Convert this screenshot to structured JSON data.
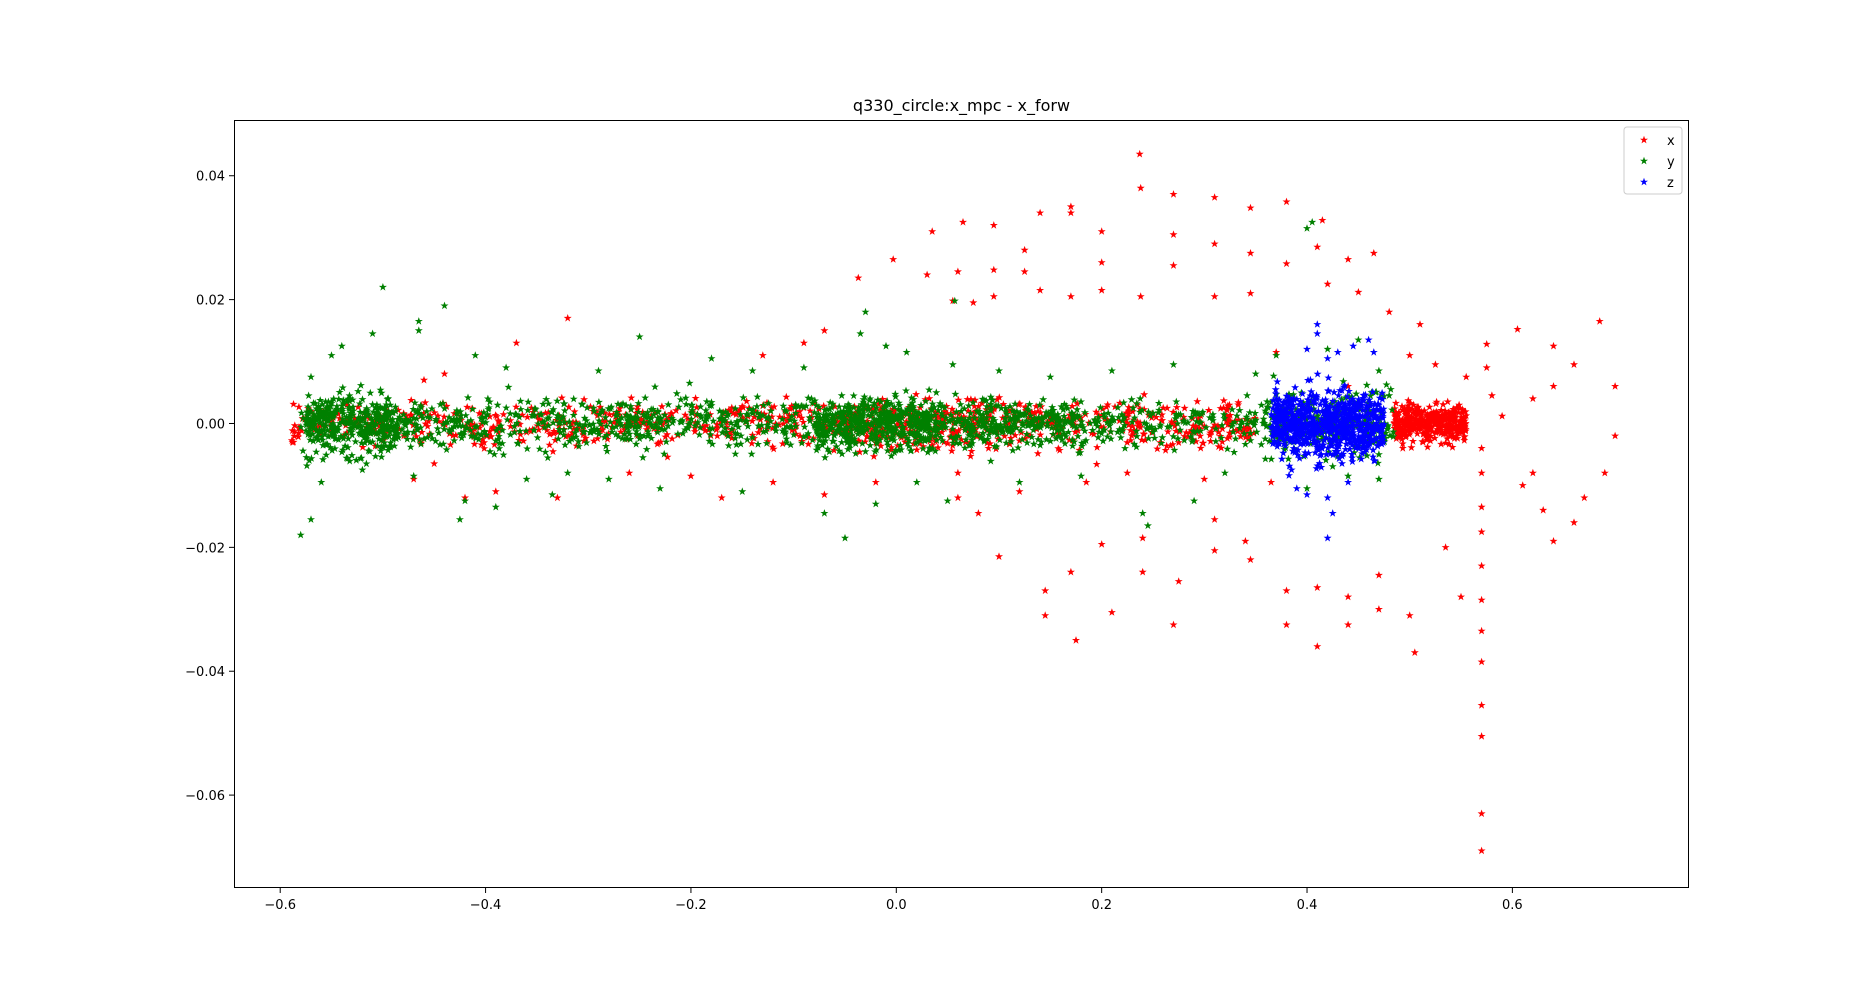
{
  "chart_data": {
    "type": "scatter",
    "title": "q330_circle:x_mpc - x_forw",
    "xlabel": "",
    "ylabel": "",
    "xlim": [
      -0.645,
      0.772
    ],
    "ylim": [
      -0.075,
      0.049
    ],
    "x_ticks": [
      -0.6,
      -0.4,
      -0.2,
      0.0,
      0.2,
      0.4,
      0.6
    ],
    "x_tick_labels": [
      "−0.6",
      "−0.4",
      "−0.2",
      "0.0",
      "0.2",
      "0.4",
      "0.6"
    ],
    "y_ticks": [
      0.04,
      0.02,
      0.0,
      -0.02,
      -0.04,
      -0.06
    ],
    "y_tick_labels": [
      "0.04",
      "0.02",
      "0.00",
      "−0.02",
      "−0.04",
      "−0.06"
    ],
    "grid": false,
    "legend_position": "top-right",
    "marker": "star",
    "series": [
      {
        "name": "x",
        "color": "#ff0000",
        "points": [
          [
            0.237,
            0.0435
          ],
          [
            0.238,
            0.038
          ],
          [
            0.27,
            0.037
          ],
          [
            0.31,
            0.0365
          ],
          [
            0.345,
            0.0348
          ],
          [
            0.38,
            0.0358
          ],
          [
            0.415,
            0.0328
          ],
          [
            0.17,
            0.035
          ],
          [
            0.17,
            0.034
          ],
          [
            0.14,
            0.034
          ],
          [
            0.095,
            0.032
          ],
          [
            0.065,
            0.0325
          ],
          [
            0.035,
            0.031
          ],
          [
            -0.003,
            0.0265
          ],
          [
            -0.037,
            0.0235
          ],
          [
            0.27,
            0.0305
          ],
          [
            0.31,
            0.029
          ],
          [
            0.345,
            0.0275
          ],
          [
            0.38,
            0.0258
          ],
          [
            0.41,
            0.0285
          ],
          [
            0.44,
            0.0265
          ],
          [
            0.465,
            0.0275
          ],
          [
            0.2,
            0.031
          ],
          [
            0.2,
            0.026
          ],
          [
            0.125,
            0.028
          ],
          [
            0.125,
            0.0245
          ],
          [
            0.095,
            0.0248
          ],
          [
            0.06,
            0.0245
          ],
          [
            0.03,
            0.024
          ],
          [
            0.27,
            0.0255
          ],
          [
            0.238,
            0.0205
          ],
          [
            0.2,
            0.0215
          ],
          [
            0.17,
            0.0205
          ],
          [
            0.14,
            0.0215
          ],
          [
            0.095,
            0.0205
          ],
          [
            0.075,
            0.0195
          ],
          [
            0.055,
            0.0198
          ],
          [
            0.31,
            0.0205
          ],
          [
            0.345,
            0.021
          ],
          [
            0.42,
            0.0225
          ],
          [
            0.45,
            0.0212
          ],
          [
            0.48,
            0.018
          ],
          [
            0.51,
            0.016
          ],
          [
            0.575,
            0.0128
          ],
          [
            0.605,
            0.0152
          ],
          [
            0.64,
            0.0125
          ],
          [
            0.685,
            0.0165
          ],
          [
            0.7,
            0.006
          ],
          [
            0.7,
            -0.002
          ],
          [
            0.69,
            -0.008
          ],
          [
            0.67,
            -0.012
          ],
          [
            0.66,
            -0.016
          ],
          [
            0.64,
            -0.019
          ],
          [
            0.63,
            -0.014
          ],
          [
            0.62,
            -0.008
          ],
          [
            0.61,
            -0.01
          ],
          [
            0.59,
            0.0012
          ],
          [
            0.58,
            0.0045
          ],
          [
            0.62,
            0.004
          ],
          [
            0.66,
            0.0095
          ],
          [
            0.64,
            0.006
          ],
          [
            0.57,
            -0.004
          ],
          [
            0.57,
            -0.008
          ],
          [
            0.57,
            -0.0135
          ],
          [
            0.57,
            -0.0175
          ],
          [
            0.57,
            -0.023
          ],
          [
            0.57,
            -0.0285
          ],
          [
            0.57,
            -0.0335
          ],
          [
            0.57,
            -0.0385
          ],
          [
            0.57,
            -0.0455
          ],
          [
            0.57,
            -0.0505
          ],
          [
            0.57,
            -0.063
          ],
          [
            0.57,
            -0.069
          ],
          [
            0.55,
            -0.028
          ],
          [
            0.535,
            -0.02
          ],
          [
            0.5,
            -0.031
          ],
          [
            0.505,
            -0.037
          ],
          [
            0.47,
            -0.03
          ],
          [
            0.47,
            -0.0245
          ],
          [
            0.44,
            -0.028
          ],
          [
            0.44,
            -0.0325
          ],
          [
            0.41,
            -0.036
          ],
          [
            0.41,
            -0.0265
          ],
          [
            0.38,
            -0.0325
          ],
          [
            0.38,
            -0.027
          ],
          [
            0.345,
            -0.022
          ],
          [
            0.31,
            -0.0205
          ],
          [
            0.27,
            -0.0325
          ],
          [
            0.275,
            -0.0255
          ],
          [
            0.24,
            -0.024
          ],
          [
            0.21,
            -0.0305
          ],
          [
            0.175,
            -0.035
          ],
          [
            0.17,
            -0.024
          ],
          [
            0.145,
            -0.031
          ],
          [
            0.145,
            -0.027
          ],
          [
            0.1,
            -0.0215
          ],
          [
            0.2,
            -0.0195
          ],
          [
            0.24,
            -0.0185
          ],
          [
            0.31,
            -0.0155
          ],
          [
            0.34,
            -0.019
          ],
          [
            0.08,
            -0.0145
          ],
          [
            0.06,
            -0.012
          ],
          [
            -0.09,
            0.013
          ],
          [
            -0.07,
            0.015
          ],
          [
            -0.13,
            0.011
          ],
          [
            -0.32,
            0.017
          ],
          [
            -0.37,
            0.013
          ],
          [
            -0.44,
            0.008
          ],
          [
            -0.46,
            0.007
          ],
          [
            -0.48,
            0.0015
          ],
          [
            -0.47,
            -0.009
          ],
          [
            -0.45,
            -0.0065
          ],
          [
            -0.42,
            -0.012
          ],
          [
            -0.39,
            -0.011
          ],
          [
            -0.33,
            -0.012
          ],
          [
            -0.26,
            -0.008
          ],
          [
            -0.2,
            -0.0085
          ],
          [
            -0.17,
            -0.012
          ],
          [
            -0.12,
            -0.0095
          ],
          [
            -0.07,
            -0.0115
          ],
          [
            -0.02,
            -0.0095
          ],
          [
            0.06,
            -0.008
          ],
          [
            0.12,
            -0.011
          ],
          [
            0.185,
            -0.0095
          ],
          [
            0.225,
            -0.008
          ],
          [
            0.3,
            -0.009
          ],
          [
            0.365,
            -0.0095
          ],
          [
            0.37,
            0.0115
          ],
          [
            0.44,
            0.006
          ],
          [
            0.5,
            0.011
          ],
          [
            0.525,
            0.0095
          ],
          [
            0.555,
            0.0075
          ],
          [
            0.575,
            0.009
          ]
        ]
      },
      {
        "name": "y",
        "color": "#008000",
        "points": [
          [
            -0.5,
            0.022
          ],
          [
            -0.465,
            0.0165
          ],
          [
            -0.44,
            0.019
          ],
          [
            -0.465,
            0.015
          ],
          [
            -0.51,
            0.0145
          ],
          [
            -0.54,
            0.0125
          ],
          [
            -0.55,
            0.011
          ],
          [
            -0.57,
            0.0075
          ],
          [
            -0.58,
            -0.018
          ],
          [
            -0.57,
            -0.0155
          ],
          [
            -0.56,
            -0.0095
          ],
          [
            -0.52,
            -0.0075
          ],
          [
            -0.425,
            -0.0155
          ],
          [
            -0.42,
            -0.0125
          ],
          [
            -0.39,
            -0.0135
          ],
          [
            -0.36,
            -0.009
          ],
          [
            -0.335,
            -0.0115
          ],
          [
            -0.28,
            -0.009
          ],
          [
            -0.25,
            0.014
          ],
          [
            -0.29,
            0.0085
          ],
          [
            -0.41,
            0.011
          ],
          [
            -0.38,
            0.009
          ],
          [
            -0.18,
            0.0105
          ],
          [
            -0.14,
            0.0085
          ],
          [
            -0.09,
            0.009
          ],
          [
            -0.03,
            0.018
          ],
          [
            -0.035,
            0.0145
          ],
          [
            -0.01,
            0.0125
          ],
          [
            0.01,
            0.0115
          ],
          [
            0.057,
            0.0198
          ],
          [
            0.055,
            0.0095
          ],
          [
            0.1,
            0.0085
          ],
          [
            0.15,
            0.0075
          ],
          [
            0.21,
            0.0085
          ],
          [
            0.27,
            0.0095
          ],
          [
            0.35,
            0.008
          ],
          [
            0.37,
            0.011
          ],
          [
            0.405,
            0.0325
          ],
          [
            0.4,
            0.0315
          ],
          [
            0.42,
            0.012
          ],
          [
            0.45,
            0.0135
          ],
          [
            0.47,
            0.0085
          ],
          [
            0.48,
            0.0045
          ],
          [
            0.47,
            -0.005
          ],
          [
            0.47,
            -0.009
          ],
          [
            0.44,
            -0.0085
          ],
          [
            0.4,
            -0.0105
          ],
          [
            -0.07,
            -0.0145
          ],
          [
            -0.05,
            -0.0185
          ],
          [
            -0.02,
            -0.013
          ],
          [
            0.02,
            -0.0095
          ],
          [
            0.05,
            -0.0125
          ],
          [
            0.12,
            -0.0095
          ],
          [
            0.18,
            -0.0085
          ],
          [
            0.24,
            -0.0145
          ],
          [
            0.245,
            -0.0165
          ],
          [
            0.29,
            -0.0125
          ],
          [
            0.32,
            -0.008
          ],
          [
            -0.15,
            -0.011
          ],
          [
            -0.23,
            -0.0105
          ],
          [
            -0.32,
            -0.008
          ],
          [
            -0.47,
            -0.0085
          ]
        ]
      },
      {
        "name": "z",
        "color": "#0000ff",
        "points": [
          [
            0.41,
            0.016
          ],
          [
            0.41,
            0.0145
          ],
          [
            0.4,
            0.012
          ],
          [
            0.42,
            0.0105
          ],
          [
            0.43,
            0.0115
          ],
          [
            0.445,
            0.0125
          ],
          [
            0.46,
            0.0135
          ],
          [
            0.465,
            0.0115
          ],
          [
            0.42,
            -0.0185
          ],
          [
            0.425,
            -0.0145
          ],
          [
            0.42,
            -0.012
          ],
          [
            0.4,
            -0.0115
          ],
          [
            0.39,
            -0.0105
          ],
          [
            0.44,
            -0.0095
          ],
          [
            0.385,
            -0.0075
          ]
        ]
      }
    ],
    "dense_clusters": [
      {
        "series": "y",
        "x_center": -0.53,
        "y_center": 0.0,
        "x_spread": 0.045,
        "y_spread": 0.0045,
        "count": 260
      },
      {
        "series": "y",
        "x_center": -0.02,
        "y_center": 0.0,
        "x_spread": 0.06,
        "y_spread": 0.0035,
        "count": 360
      },
      {
        "series": "y",
        "x_center": -0.2,
        "y_center": 0.0,
        "x_spread": 0.38,
        "y_spread": 0.0035,
        "count": 900
      },
      {
        "series": "y",
        "x_center": 0.25,
        "y_center": 0.0,
        "x_spread": 0.23,
        "y_spread": 0.003,
        "count": 420
      },
      {
        "series": "y",
        "x_center": 0.42,
        "y_center": 0.0,
        "x_spread": 0.065,
        "y_spread": 0.0045,
        "count": 160
      },
      {
        "series": "x",
        "x_center": -0.25,
        "y_center": 0.0,
        "x_spread": 0.34,
        "y_spread": 0.003,
        "count": 600
      },
      {
        "series": "x",
        "x_center": 0.15,
        "y_center": 0.0,
        "x_spread": 0.2,
        "y_spread": 0.0035,
        "count": 420
      },
      {
        "series": "x",
        "x_center": 0.52,
        "y_center": 0.0,
        "x_spread": 0.035,
        "y_spread": 0.0025,
        "count": 380
      },
      {
        "series": "z",
        "x_center": 0.42,
        "y_center": 0.0,
        "x_spread": 0.055,
        "y_spread": 0.0045,
        "count": 700
      }
    ]
  }
}
